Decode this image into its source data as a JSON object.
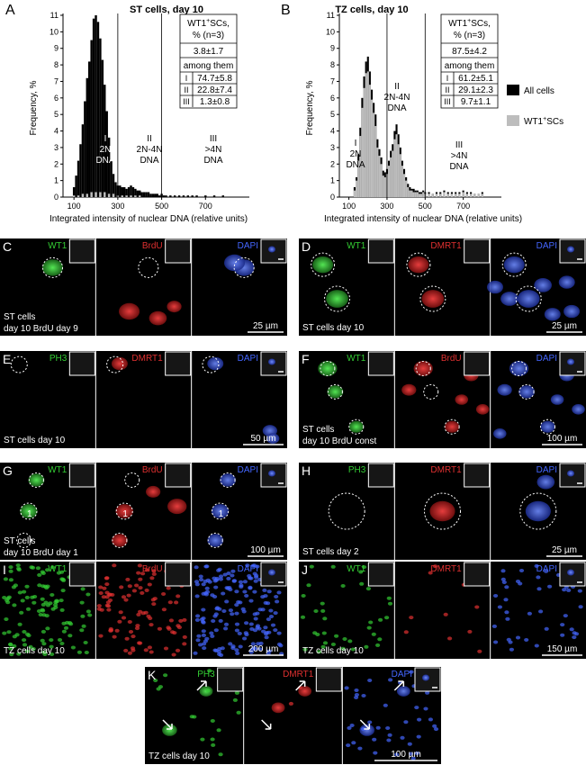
{
  "panels": {
    "A": {
      "letter": "A",
      "title": "ST cells, day 10",
      "ylabel": "Frequency, %",
      "xlabel": "Integrated intensity of nuclear DNA (relative units)",
      "yticks": [
        "0",
        "1",
        "2",
        "3",
        "4",
        "5",
        "6",
        "7",
        "8",
        "9",
        "10",
        "11"
      ],
      "xticks": [
        "100",
        "300",
        "500",
        "700"
      ],
      "regions": [
        {
          "num": "I",
          "l1": "2N",
          "l2": "DNA"
        },
        {
          "num": "II",
          "l1": "2N-4N",
          "l2": "DNA"
        },
        {
          "num": "III",
          "l1": ">4N",
          "l2": "DNA"
        }
      ],
      "table": {
        "head": [
          "WT1",
          "+",
          "SCs,",
          "%",
          "(n=3)"
        ],
        "head_line1": "WT1+SCs,",
        "head_line2": "% (n=3)",
        "total": "3.8±1.7",
        "among": "among them",
        "rows": [
          [
            "I",
            "74.7±5.8"
          ],
          [
            "II",
            "22.8±7.4"
          ],
          [
            "III",
            "1.3±0.8"
          ]
        ]
      }
    },
    "B": {
      "letter": "B",
      "title": "TZ cells, day 10",
      "ylabel": "Frequency, %",
      "xlabel": "Integrated intensity of nuclear DNA (relative units)",
      "yticks": [
        "0",
        "1",
        "2",
        "3",
        "4",
        "5",
        "6",
        "7",
        "8",
        "9",
        "10",
        "11"
      ],
      "xticks": [
        "100",
        "300",
        "500",
        "700"
      ],
      "regions": [
        {
          "num": "I",
          "l1": "2N",
          "l2": "DNA"
        },
        {
          "num": "II",
          "l1": "2N-4N",
          "l2": "DNA"
        },
        {
          "num": "III",
          "l1": ">4N",
          "l2": "DNA"
        }
      ],
      "table": {
        "total": "87.5±4.2",
        "among": "among them",
        "rows": [
          [
            "I",
            "61.2±5.1"
          ],
          [
            "II",
            "29.1±2.3"
          ],
          [
            "III",
            "9.7±1.1"
          ]
        ]
      }
    }
  },
  "legend": {
    "all": "All cells",
    "wt1": "WT1",
    "wt1_sup": "+",
    "wt1_tail": "SCs"
  },
  "colors": {
    "all": "#000000",
    "wt1": "#bdbdbd",
    "green": "#33cc33",
    "red": "#dd2222",
    "blue": "#3355ee"
  },
  "chart_data": [
    {
      "type": "bar",
      "title": "ST cells, day 10",
      "xlabel": "Integrated intensity of nuclear DNA (relative units)",
      "ylabel": "Frequency, %",
      "xlim": [
        50,
        900
      ],
      "ylim": [
        0,
        11
      ],
      "series": [
        {
          "name": "All cells",
          "x": [
            100,
            110,
            120,
            130,
            140,
            150,
            160,
            170,
            180,
            190,
            200,
            210,
            220,
            230,
            240,
            250,
            260,
            270,
            280,
            290,
            300,
            310,
            320,
            330,
            340,
            350,
            360,
            370,
            380,
            390,
            400,
            410,
            420,
            430,
            440,
            450,
            460,
            470,
            480,
            490,
            500,
            510,
            520,
            540,
            560,
            580,
            600,
            620,
            640,
            660,
            700,
            740,
            780
          ],
          "values": [
            0.6,
            1.3,
            2.2,
            3.2,
            4.4,
            5.8,
            7.2,
            8.2,
            9.5,
            10.8,
            11.0,
            10.6,
            9.6,
            8.3,
            6.8,
            5.2,
            3.6,
            2.2,
            1.4,
            0.9,
            0.7,
            0.7,
            0.6,
            0.6,
            0.5,
            0.6,
            0.7,
            0.6,
            0.5,
            0.4,
            0.4,
            0.3,
            0.3,
            0.3,
            0.3,
            0.2,
            0.2,
            0.2,
            0.2,
            0.1,
            0.2,
            0.1,
            0.1,
            0.1,
            0.1,
            0.1,
            0.1,
            0.1,
            0.1,
            0.1,
            0.1,
            0.1,
            0.1
          ]
        },
        {
          "name": "WT1+SCs",
          "x": [
            100,
            120,
            140,
            160,
            180,
            200,
            220,
            240,
            260,
            280,
            300,
            320,
            340,
            360,
            380,
            400
          ],
          "values": [
            0.1,
            0.1,
            0.2,
            0.2,
            0.3,
            0.3,
            0.3,
            0.3,
            0.2,
            0.2,
            0.1,
            0.1,
            0.1,
            0.1,
            0.1,
            0.1
          ]
        }
      ]
    },
    {
      "type": "bar",
      "title": "TZ cells, day 10",
      "xlabel": "Integrated intensity of nuclear DNA (relative units)",
      "ylabel": "Frequency, %",
      "xlim": [
        50,
        900
      ],
      "ylim": [
        0,
        11
      ],
      "series": [
        {
          "name": "All cells",
          "x": [
            130,
            140,
            150,
            160,
            170,
            180,
            190,
            200,
            210,
            220,
            230,
            240,
            250,
            260,
            270,
            280,
            290,
            300,
            310,
            320,
            330,
            340,
            350,
            360,
            370,
            380,
            390,
            400,
            410,
            420,
            430,
            440,
            450,
            460,
            470,
            480,
            490,
            500,
            520,
            540,
            560,
            580,
            600,
            620,
            640,
            660,
            680,
            700,
            720,
            740,
            760,
            780,
            800
          ],
          "values": [
            0.6,
            1.2,
            2.6,
            4.2,
            6.0,
            7.3,
            8.2,
            8.5,
            7.6,
            6.5,
            5.7,
            5.0,
            3.5,
            2.9,
            2.4,
            1.6,
            1.5,
            1.7,
            2.2,
            2.8,
            3.2,
            4.0,
            4.4,
            3.8,
            3.0,
            2.2,
            1.7,
            1.2,
            0.8,
            0.6,
            0.5,
            0.5,
            0.4,
            0.4,
            0.3,
            0.3,
            0.4,
            0.3,
            0.3,
            0.2,
            0.3,
            0.3,
            0.4,
            0.3,
            0.3,
            0.3,
            0.3,
            0.4,
            0.3,
            0.3,
            0.2,
            0.2,
            0.3
          ]
        },
        {
          "name": "WT1+SCs",
          "x": [
            130,
            140,
            150,
            160,
            170,
            180,
            190,
            200,
            210,
            220,
            230,
            240,
            250,
            260,
            270,
            280,
            290,
            300,
            310,
            320,
            330,
            340,
            350,
            360,
            370,
            380,
            390,
            400,
            410,
            420,
            430,
            440,
            450,
            460,
            470,
            480,
            490,
            500,
            520,
            540,
            560,
            580,
            600,
            620,
            640,
            660,
            680,
            700,
            720,
            740,
            760,
            780,
            800
          ],
          "values": [
            0.4,
            1.0,
            2.2,
            3.7,
            5.4,
            6.6,
            7.5,
            7.6,
            6.8,
            5.9,
            5.1,
            4.3,
            3.0,
            2.5,
            2.0,
            1.3,
            1.2,
            1.4,
            1.9,
            2.4,
            2.8,
            3.5,
            3.8,
            3.2,
            2.6,
            1.9,
            1.4,
            1.0,
            0.6,
            0.4,
            0.4,
            0.3,
            0.3,
            0.3,
            0.2,
            0.2,
            0.3,
            0.2,
            0.2,
            0.2,
            0.2,
            0.2,
            0.3,
            0.2,
            0.2,
            0.2,
            0.2,
            0.3,
            0.2,
            0.2,
            0.2,
            0.2,
            0.2
          ]
        }
      ]
    }
  ],
  "micro": {
    "C": {
      "letter": "C",
      "ch": [
        "WT1",
        "BrdU",
        "DAPI"
      ],
      "cap1": "ST cells",
      "cap2": "day 10 BrdU day 9",
      "scale": "25 µm"
    },
    "D": {
      "letter": "D",
      "ch": [
        "WT1",
        "DMRT1",
        "DAPI"
      ],
      "cap1": "ST cells day 10",
      "scale": "25 µm"
    },
    "E": {
      "letter": "E",
      "ch": [
        "PH3",
        "DMRT1",
        "DAPI"
      ],
      "cap1": "ST cells day 10",
      "scale": "50 µm"
    },
    "F": {
      "letter": "F",
      "ch": [
        "WT1",
        "BrdU",
        "DAPI"
      ],
      "cap1": "ST cells",
      "cap2": "day 10 BrdU const",
      "scale": "100 µm"
    },
    "G": {
      "letter": "G",
      "ch": [
        "WT1",
        "BrdU",
        "DAPI"
      ],
      "cap1": "ST cells",
      "cap2": "day 10 BrdU day 1",
      "scale": "100 µm",
      "mark": "1"
    },
    "H": {
      "letter": "H",
      "ch": [
        "PH3",
        "DMRT1",
        "DAPI"
      ],
      "cap1": "ST cells day 2",
      "scale": "25 µm"
    },
    "I": {
      "letter": "I",
      "ch": [
        "WT1",
        "BrdU",
        "DAPI"
      ],
      "cap1": "TZ cells day 10",
      "scale": "200 µm"
    },
    "J": {
      "letter": "J",
      "ch": [
        "WT1",
        "DMRT1",
        "DAPI"
      ],
      "cap1": "TZ cells day 10",
      "scale": "150 µm"
    },
    "K": {
      "letter": "K",
      "ch": [
        "PH3",
        "DMRT1",
        "DAPI"
      ],
      "cap1": "TZ cells day 10",
      "scale": "100 µm"
    }
  }
}
